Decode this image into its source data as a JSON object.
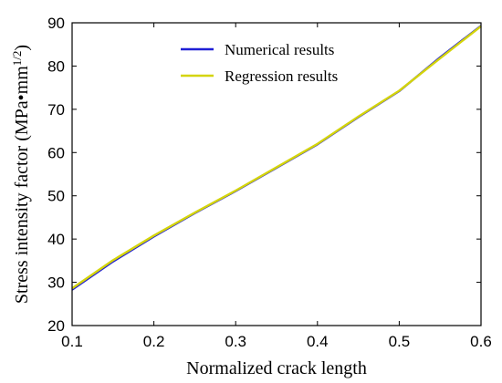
{
  "chart_data": {
    "type": "line",
    "title": "",
    "xlabel": "Normalized crack length",
    "ylabel": "Stress intensity factor (MPa•mm",
    "ylabel_sup": "1/2",
    "ylabel_close": ")",
    "xlim": [
      0.1,
      0.6
    ],
    "ylim": [
      20,
      90
    ],
    "xticks": [
      "0.1",
      "0.2",
      "0.3",
      "0.4",
      "0.5",
      "0.6"
    ],
    "yticks": [
      "20",
      "30",
      "40",
      "50",
      "60",
      "70",
      "80",
      "90"
    ],
    "grid": false,
    "legend_position": "top-center",
    "series": [
      {
        "name": "Numerical results",
        "color": "#1f1fd6",
        "x": [
          0.1,
          0.15,
          0.2,
          0.25,
          0.3,
          0.35,
          0.4,
          0.45,
          0.5,
          0.55,
          0.6
        ],
        "y": [
          28.3,
          34.8,
          40.6,
          46.0,
          51.1,
          56.5,
          61.9,
          68.2,
          74.2,
          82.0,
          89.3
        ]
      },
      {
        "name": "Regression results",
        "color": "#d4d40a",
        "x": [
          0.1,
          0.15,
          0.2,
          0.25,
          0.3,
          0.35,
          0.4,
          0.45,
          0.5,
          0.55,
          0.6
        ],
        "y": [
          28.6,
          35.1,
          40.8,
          46.1,
          51.2,
          56.6,
          62.0,
          68.3,
          74.3,
          81.8,
          89.2
        ]
      }
    ]
  }
}
